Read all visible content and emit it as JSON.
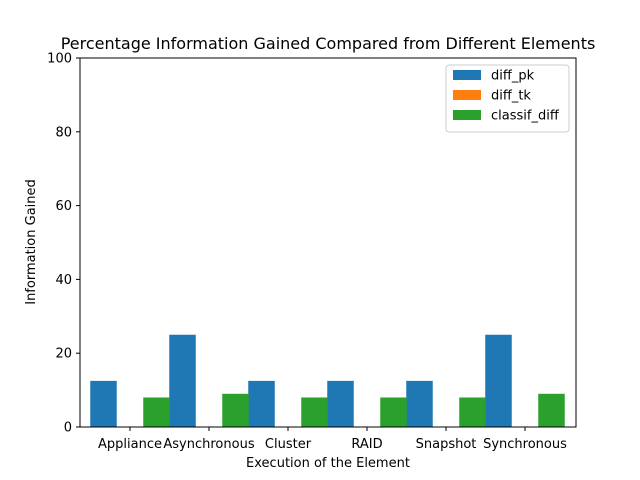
{
  "chart_data": {
    "type": "bar",
    "title": "Percentage Information Gained Compared from Different Elements",
    "xlabel": "Execution of the Element",
    "ylabel": "Information Gained",
    "ylim": [
      0,
      100
    ],
    "yticks": [
      0,
      20,
      40,
      60,
      80,
      100
    ],
    "categories": [
      "Appliance",
      "Asynchronous",
      "Cluster",
      "RAID",
      "Snapshot",
      "Synchronous"
    ],
    "series": [
      {
        "name": "diff_pk",
        "color": "#1f77b4",
        "values": [
          12.5,
          25,
          12.5,
          12.5,
          12.5,
          25
        ]
      },
      {
        "name": "diff_tk",
        "color": "#ff7f0e",
        "values": [
          0,
          0,
          0,
          0,
          0,
          0
        ]
      },
      {
        "name": "classif_diff",
        "color": "#2ca02c",
        "values": [
          8,
          9,
          8,
          8,
          8,
          9
        ]
      }
    ],
    "legend_position": "top-right",
    "grid": false
  }
}
